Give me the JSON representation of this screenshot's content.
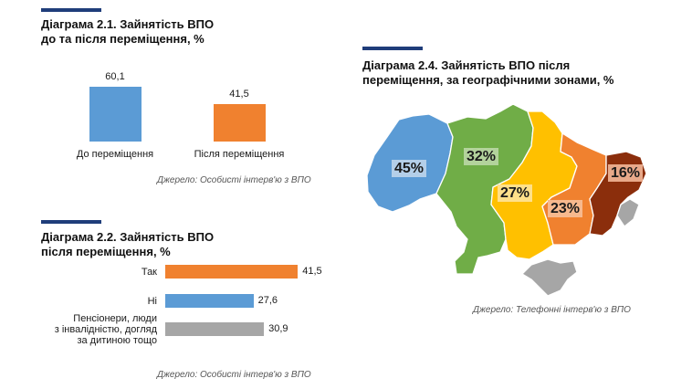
{
  "chart_data": [
    {
      "type": "bar",
      "title": "Діаграма 2.1. Зайнятість ВПО",
      "subtitle": "до та після переміщення, %",
      "categories": [
        "До переміщення",
        "Після переміщення"
      ],
      "values": [
        60.1,
        41.5
      ],
      "value_labels": [
        "60,1",
        "41,5"
      ],
      "colors": [
        "#5b9bd5",
        "#f0812f"
      ],
      "source": "Джерело: Особисті інтерв'ю з ВПО"
    },
    {
      "type": "bar",
      "orientation": "horizontal",
      "title": "Діаграма 2.2. Зайнятість ВПО",
      "subtitle": "після переміщення, %",
      "categories": [
        "Так",
        "Ні",
        "Пенсіонери, люди з інвалідністю, догляд за дитиною тощо"
      ],
      "category_lines": [
        [
          "Так"
        ],
        [
          "Ні"
        ],
        [
          "Пенсіонери, люди",
          "з інвалідністю, догляд",
          "за дитиною тощо"
        ]
      ],
      "values": [
        41.5,
        27.6,
        30.9
      ],
      "value_labels": [
        "41,5",
        "27,6",
        "30,9"
      ],
      "colors": [
        "#f0812f",
        "#5b9bd5",
        "#a6a6a6"
      ],
      "source": "Джерело: Особисті інтерв'ю з ВПО"
    },
    {
      "type": "map",
      "title": "Діаграма 2.4. Зайнятість ВПО після",
      "subtitle": "переміщення, за географічними зонами, %",
      "zones": [
        {
          "label": "45%",
          "value": 45,
          "color": "#5b9bd5"
        },
        {
          "label": "32%",
          "value": 32,
          "color": "#70ad47"
        },
        {
          "label": "27%",
          "value": 27,
          "color": "#ffc000"
        },
        {
          "label": "23%",
          "value": 23,
          "color": "#f0812f"
        },
        {
          "label": "16%",
          "value": 16,
          "color": "#8b2e0c"
        }
      ],
      "other_color": "#a6a6a6",
      "source": "Джерело: Телефонні інтерв'ю з ВПО"
    }
  ],
  "colors": {
    "accent": "#1f3d7a"
  }
}
